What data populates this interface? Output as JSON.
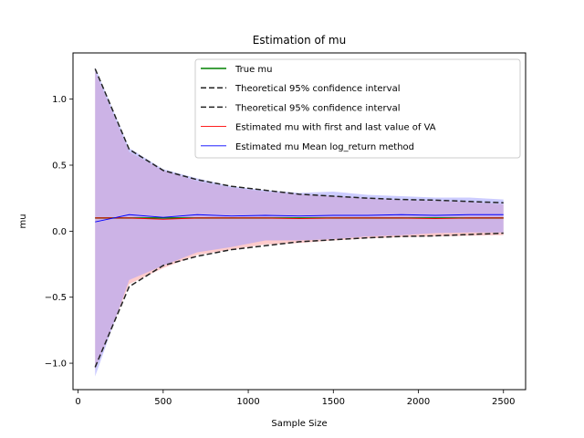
{
  "chart_data": {
    "type": "line",
    "title": "Estimation of mu",
    "xlabel": "Sample Size",
    "ylabel": "mu",
    "xlim": [
      -30,
      2630
    ],
    "ylim": [
      -1.2,
      1.35
    ],
    "xticks": [
      0,
      500,
      1000,
      1500,
      2000,
      2500
    ],
    "xtick_labels": [
      "0",
      "500",
      "1000",
      "1500",
      "2000",
      "2500"
    ],
    "yticks": [
      -1.0,
      -0.5,
      0.0,
      0.5,
      1.0
    ],
    "ytick_labels": [
      "−1.0",
      "−0.5",
      "0.0",
      "0.5",
      "1.0"
    ],
    "grid": false,
    "legend_position": "top-right",
    "x": [
      100,
      300,
      500,
      700,
      900,
      1100,
      1300,
      1500,
      1700,
      1900,
      2100,
      2300,
      2500
    ],
    "series": [
      {
        "name": "True mu",
        "color": "#008000",
        "style": "solid",
        "values": [
          0.1,
          0.1,
          0.1,
          0.1,
          0.1,
          0.1,
          0.1,
          0.1,
          0.1,
          0.1,
          0.1,
          0.1,
          0.1
        ]
      },
      {
        "name": "Theoretical 95% confidence interval",
        "color": "#222222",
        "style": "dashed",
        "values": [
          1.23,
          0.62,
          0.46,
          0.39,
          0.34,
          0.31,
          0.28,
          0.265,
          0.25,
          0.24,
          0.235,
          0.225,
          0.215
        ]
      },
      {
        "name": "Theoretical 95% confidence interval",
        "color": "#222222",
        "style": "dashed",
        "values": [
          -1.03,
          -0.42,
          -0.26,
          -0.19,
          -0.14,
          -0.11,
          -0.08,
          -0.065,
          -0.05,
          -0.04,
          -0.035,
          -0.025,
          -0.015
        ]
      },
      {
        "name": "Estimated mu with first and last value of VA",
        "color": "#ff0000",
        "style": "solid",
        "values": [
          0.1,
          0.1,
          0.09,
          0.1,
          0.1,
          0.1,
          0.095,
          0.1,
          0.1,
          0.1,
          0.095,
          0.1,
          0.1
        ]
      },
      {
        "name": "Estimated mu Mean log_return method",
        "color": "#0000ff",
        "style": "solid",
        "values": [
          0.07,
          0.125,
          0.105,
          0.125,
          0.115,
          0.12,
          0.115,
          0.12,
          0.12,
          0.125,
          0.12,
          0.125,
          0.125
        ]
      }
    ],
    "bands": [
      {
        "color": "#ff9999",
        "upper": [
          1.21,
          0.6,
          0.46,
          0.38,
          0.33,
          0.3,
          0.28,
          0.265,
          0.25,
          0.235,
          0.23,
          0.22,
          0.205
        ],
        "lower": [
          -1.05,
          -0.4,
          -0.28,
          -0.18,
          -0.14,
          -0.1,
          -0.09,
          -0.07,
          -0.055,
          -0.045,
          -0.04,
          -0.035,
          -0.03
        ]
      },
      {
        "color": "#9999ff",
        "upper": [
          1.24,
          0.63,
          0.47,
          0.4,
          0.34,
          0.31,
          0.29,
          0.3,
          0.275,
          0.265,
          0.255,
          0.255,
          0.24
        ],
        "lower": [
          -1.1,
          -0.37,
          -0.26,
          -0.16,
          -0.12,
          -0.07,
          -0.07,
          -0.06,
          -0.04,
          -0.03,
          -0.015,
          -0.01,
          -0.01
        ]
      }
    ]
  }
}
